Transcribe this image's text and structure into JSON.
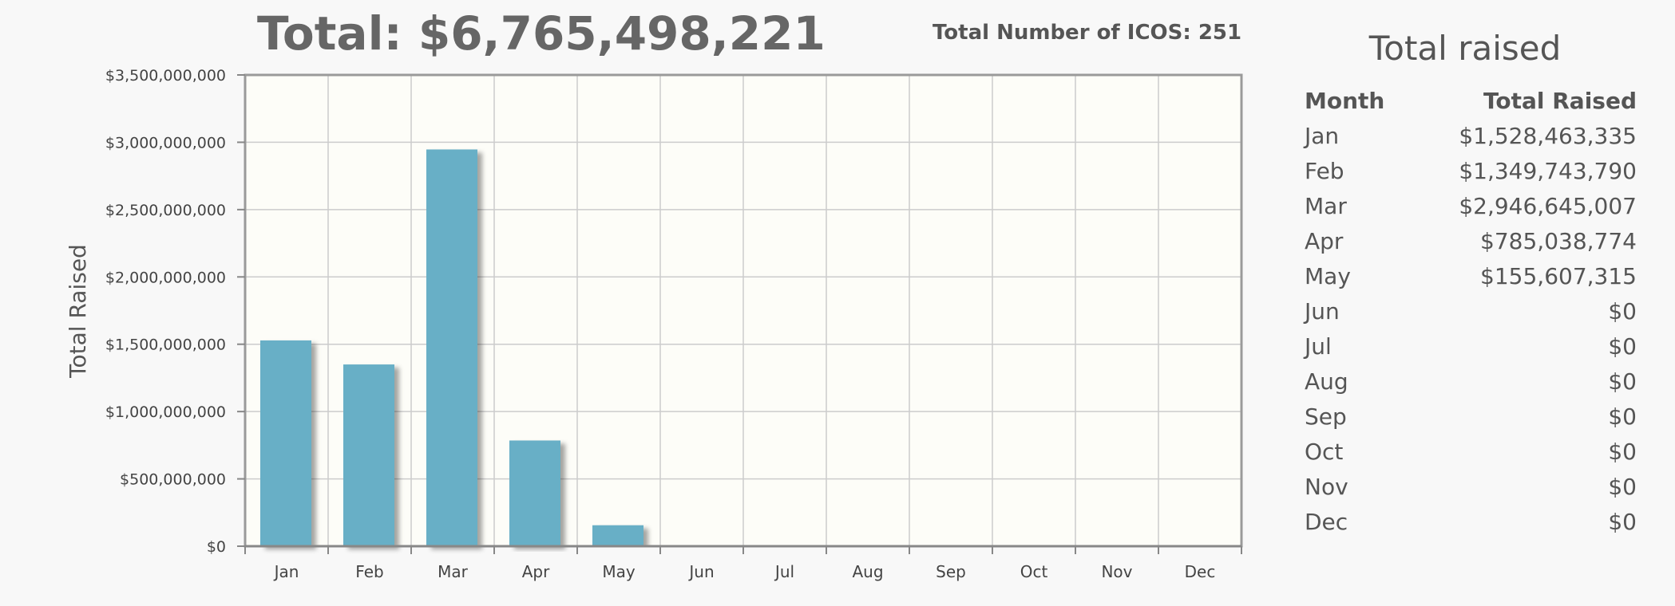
{
  "header": {
    "total": "Total: $6,765,498,221",
    "ico_count": "Total Number of ICOS: 251"
  },
  "table": {
    "title": "Total raised",
    "col_month": "Month",
    "col_total": "Total Raised",
    "rows": [
      {
        "month": "Jan",
        "value": "$1,528,463,335"
      },
      {
        "month": "Feb",
        "value": "$1,349,743,790"
      },
      {
        "month": "Mar",
        "value": "$2,946,645,007"
      },
      {
        "month": "Apr",
        "value": "$785,038,774"
      },
      {
        "month": "May",
        "value": "$155,607,315"
      },
      {
        "month": "Jun",
        "value": "$0"
      },
      {
        "month": "Jul",
        "value": "$0"
      },
      {
        "month": "Aug",
        "value": "$0"
      },
      {
        "month": "Sep",
        "value": "$0"
      },
      {
        "month": "Oct",
        "value": "$0"
      },
      {
        "month": "Nov",
        "value": "$0"
      },
      {
        "month": "Dec",
        "value": "$0"
      }
    ]
  },
  "chart_data": {
    "type": "bar",
    "title": "",
    "xlabel": "",
    "ylabel": "Total Raised",
    "categories": [
      "Jan",
      "Feb",
      "Mar",
      "Apr",
      "May",
      "Jun",
      "Jul",
      "Aug",
      "Sep",
      "Oct",
      "Nov",
      "Dec"
    ],
    "values": [
      1528463335,
      1349743790,
      2946645007,
      785038774,
      155607315,
      0,
      0,
      0,
      0,
      0,
      0,
      0
    ],
    "ylim": [
      0,
      3500000000
    ],
    "yticks": [
      0,
      500000000,
      1000000000,
      1500000000,
      2000000000,
      2500000000,
      3000000000,
      3500000000
    ],
    "ytick_labels": [
      "$0",
      "$500,000,000",
      "$1,000,000,000",
      "$1,500,000,000",
      "$2,000,000,000",
      "$2,500,000,000",
      "$3,000,000,000",
      "$3,500,000,000"
    ],
    "grid": true,
    "legend": "none",
    "colors": {
      "bar": "#67afc6",
      "plot_bg": "#fdfdf8",
      "grid": "#cccccc",
      "frame": "#9a9a9a"
    }
  }
}
